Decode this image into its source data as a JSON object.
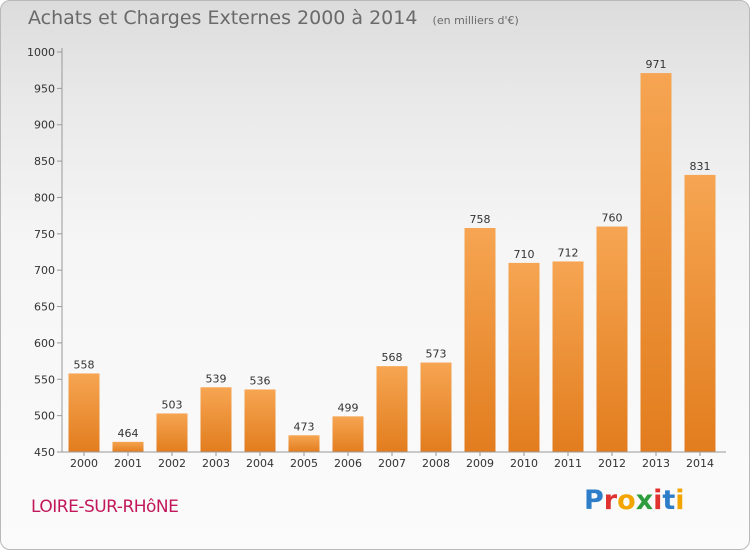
{
  "header": {
    "title": "Achats et Charges Externes 2000 à 2014",
    "subtitle": "(en milliers d'€)"
  },
  "footer": {
    "commune": "LOIRE-SUR-RHôNE",
    "brand": "Proxiti",
    "brand_colors": [
      "#2e7dc9",
      "#e0322f",
      "#f2a400",
      "#2e9d3d",
      "#e0322f",
      "#2e7dc9",
      "#f2a400"
    ]
  },
  "colors": {
    "bar_top": "#f6a552",
    "bar_bottom": "#e27d1e",
    "axis": "#999999",
    "tick_text": "#333333",
    "commune": "#c2185b"
  },
  "chart_data": {
    "type": "bar",
    "categories": [
      "2000",
      "2001",
      "2002",
      "2003",
      "2004",
      "2005",
      "2006",
      "2007",
      "2008",
      "2009",
      "2010",
      "2011",
      "2012",
      "2013",
      "2014"
    ],
    "values": [
      558,
      464,
      503,
      539,
      536,
      473,
      499,
      568,
      573,
      758,
      710,
      712,
      760,
      971,
      831
    ],
    "ylim": [
      450,
      1000
    ],
    "yticks": [
      450,
      500,
      550,
      600,
      650,
      700,
      750,
      800,
      850,
      900,
      950,
      1000
    ],
    "grid": false,
    "title": "Achats et Charges Externes 2000 à 2014",
    "xlabel": "",
    "ylabel": ""
  }
}
